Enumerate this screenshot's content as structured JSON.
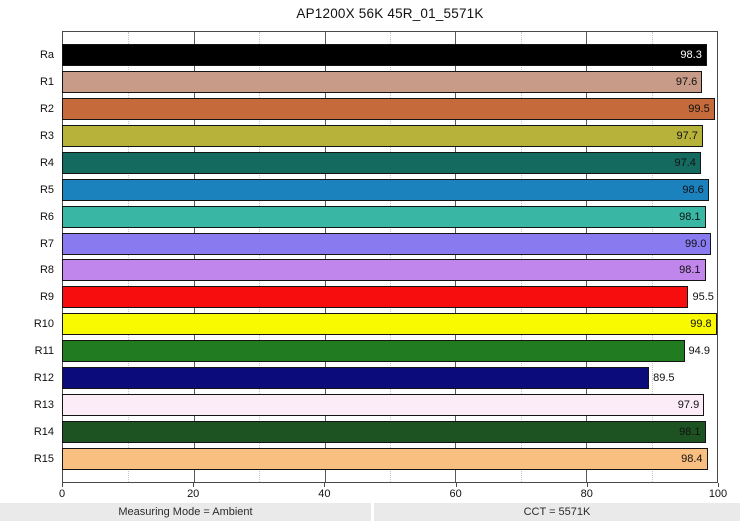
{
  "title": "AP1200X 56K 45R_01_5571K",
  "status_bar": {
    "measuring_mode": "Measuring Mode = Ambient",
    "cct": "CCT = 5571K"
  },
  "chart_data": {
    "type": "bar",
    "orientation": "horizontal",
    "title": "AP1200X 56K 45R_01_5571K",
    "xlim": [
      0,
      100
    ],
    "x_major_ticks": [
      0,
      20,
      40,
      60,
      80,
      100
    ],
    "x_minor_ticks": [
      10,
      30,
      50,
      70,
      90
    ],
    "grid": "vertical, major solid dark + minor dotted light",
    "legend": "none",
    "categories": [
      "Ra",
      "R1",
      "R2",
      "R3",
      "R4",
      "R5",
      "R6",
      "R7",
      "R8",
      "R9",
      "R10",
      "R11",
      "R12",
      "R13",
      "R14",
      "R15"
    ],
    "values": [
      98.3,
      97.6,
      99.5,
      97.7,
      97.4,
      98.6,
      98.1,
      99.0,
      98.1,
      95.5,
      99.8,
      94.9,
      89.5,
      97.9,
      98.1,
      98.4
    ],
    "value_labels": [
      "98.3",
      "97.6",
      "99.5",
      "97.7",
      "97.4",
      "98.6",
      "98.1",
      "99.0",
      "98.1",
      "95.5",
      "99.8",
      "94.9",
      "89.5",
      "97.9",
      "98.1",
      "98.4"
    ],
    "bar_colors": [
      "#000000",
      "#c79b87",
      "#c46a3b",
      "#b6b23a",
      "#156a60",
      "#1b82be",
      "#39b7a4",
      "#8a7af0",
      "#c186ec",
      "#f70d0d",
      "#f9f900",
      "#217c21",
      "#0b0b7c",
      "#fbecf7",
      "#1d5322",
      "#f9bf81"
    ],
    "value_label_colors": [
      "#ffffff",
      "#111111",
      "#111111",
      "#111111",
      "#111111",
      "#111111",
      "#111111",
      "#111111",
      "#111111",
      "#111111",
      "#111111",
      "#111111",
      "#111111",
      "#111111",
      "#111111",
      "#111111"
    ],
    "value_label_placement": [
      "inside",
      "inside",
      "inside",
      "inside",
      "inside",
      "inside",
      "inside",
      "inside",
      "inside",
      "outside",
      "inside",
      "outside",
      "outside",
      "inside",
      "inside",
      "inside"
    ]
  }
}
